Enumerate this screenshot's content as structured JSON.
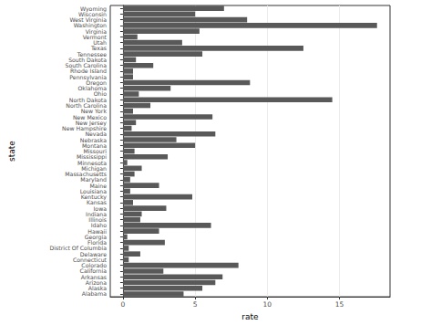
{
  "chart_data": {
    "type": "bar",
    "orientation": "horizontal",
    "x_label": "rate",
    "y_label": "state",
    "categories": [
      "Alabama",
      "Alaska",
      "Arizona",
      "Arkansas",
      "California",
      "Colorado",
      "Connecticut",
      "Delaware",
      "District Of Columbia",
      "Florida",
      "Georgia",
      "Hawaii",
      "Idaho",
      "Illinois",
      "Indiana",
      "Iowa",
      "Kansas",
      "Kentucky",
      "Louisiana",
      "Maine",
      "Maryland",
      "Massachusetts",
      "Michigan",
      "Minnesota",
      "Mississippi",
      "Missouri",
      "Montana",
      "Nebraska",
      "Nevada",
      "New Hampshire",
      "New Jersey",
      "New Mexico",
      "New York",
      "North Carolina",
      "North Dakota",
      "Ohio",
      "Oklahoma",
      "Oregon",
      "Pennsylvania",
      "Rhode Island",
      "South Carolina",
      "South Dakota",
      "Tennessee",
      "Texas",
      "Utah",
      "Vermont",
      "Virginia",
      "Washington",
      "West Virginia",
      "Wisconsin",
      "Wyoming"
    ],
    "values": [
      4.2,
      5.5,
      6.4,
      6.9,
      2.8,
      8.0,
      0.4,
      1.2,
      0.4,
      2.9,
      0.3,
      2.5,
      6.1,
      1.2,
      1.3,
      3.0,
      0.7,
      4.8,
      0.5,
      2.5,
      0.5,
      0.8,
      1.3,
      0.3,
      3.1,
      0.8,
      5.0,
      3.7,
      6.4,
      0.6,
      0.9,
      6.2,
      0.7,
      1.9,
      14.5,
      1.1,
      3.3,
      8.8,
      0.7,
      0.7,
      2.1,
      0.9,
      5.5,
      12.5,
      4.1,
      1.0,
      5.3,
      17.6,
      8.6,
      5.0,
      7.0
    ],
    "color": "#595959",
    "xlim": [
      -0.88,
      18.5
    ],
    "xticks": [
      0,
      5,
      10,
      15
    ],
    "grid": true
  }
}
